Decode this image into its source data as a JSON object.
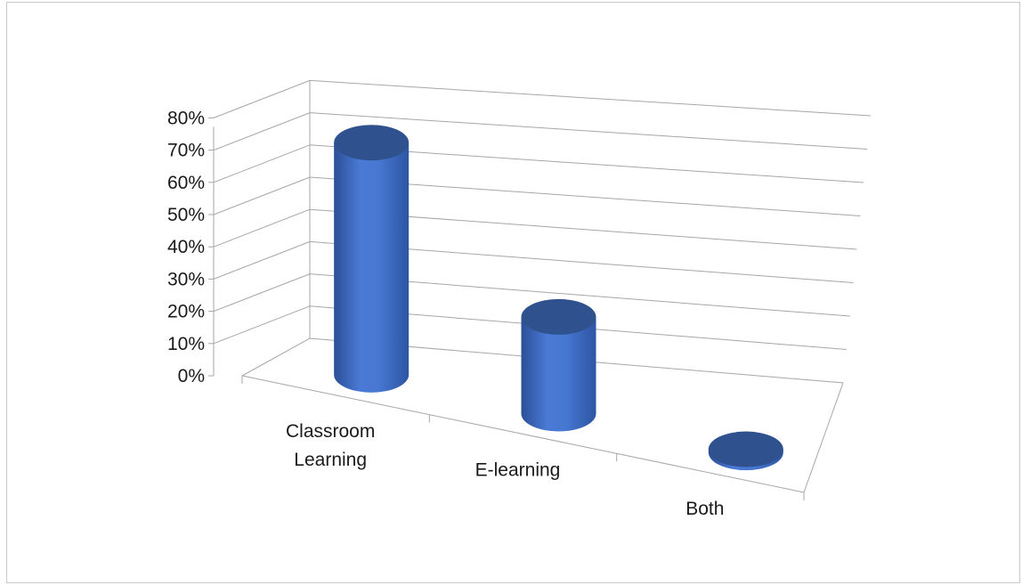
{
  "chart_data": {
    "type": "bar",
    "style": "3d-cylinder",
    "categories": [
      "Classroom Learning",
      "E-learning",
      "Both"
    ],
    "category_lines": [
      [
        "Classroom",
        "Learning"
      ],
      [
        "E-learning"
      ],
      [
        "Both"
      ]
    ],
    "values": [
      0.72,
      0.3,
      0.01
    ],
    "value_format": "percent",
    "ylim": [
      0,
      0.8
    ],
    "yticks": [
      0,
      0.1,
      0.2,
      0.3,
      0.4,
      0.5,
      0.6,
      0.7,
      0.8
    ],
    "ytick_labels": [
      "0%",
      "10%",
      "20%",
      "30%",
      "40%",
      "50%",
      "60%",
      "70%",
      "80%"
    ],
    "grid": true,
    "legend": false,
    "title": "",
    "xlabel": "",
    "ylabel": "",
    "colors": {
      "bar_body": "#4472c4",
      "bar_top": "#2f528f",
      "grid": "#a6a6a6",
      "axis": "#a6a6a6"
    }
  }
}
